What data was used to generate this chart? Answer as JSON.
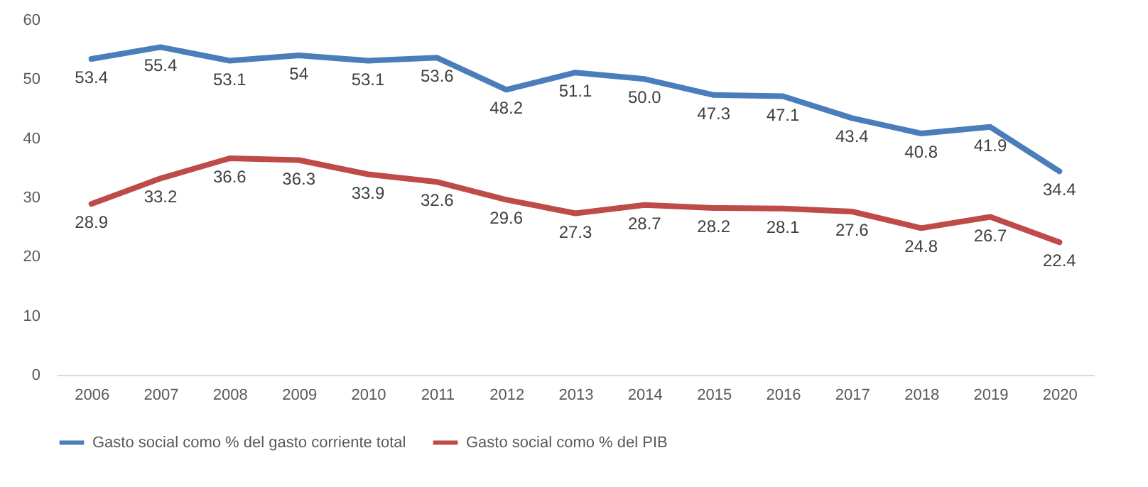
{
  "chart_data": {
    "type": "line",
    "categories": [
      "2006",
      "2007",
      "2008",
      "2009",
      "2010",
      "2011",
      "2012",
      "2013",
      "2014",
      "2015",
      "2016",
      "2017",
      "2018",
      "2019",
      "2020"
    ],
    "series": [
      {
        "name": "Gasto social como % del gasto corriente total",
        "color": "#4a7ebb",
        "values": [
          53.4,
          55.4,
          53.1,
          54,
          53.1,
          53.6,
          48.2,
          51.1,
          50.0,
          47.3,
          47.1,
          43.4,
          40.8,
          41.9,
          34.4
        ],
        "value_labels": [
          "53.4",
          "55.4",
          "53.1",
          "54",
          "53.1",
          "53.6",
          "48.2",
          "51.1",
          "50.0",
          "47.3",
          "47.1",
          "43.4",
          "40.8",
          "41.9",
          "34.4"
        ]
      },
      {
        "name": "Gasto social como % del PIB",
        "color": "#be4b48",
        "values": [
          28.9,
          33.2,
          36.6,
          36.3,
          33.9,
          32.6,
          29.6,
          27.3,
          28.7,
          28.2,
          28.1,
          27.6,
          24.8,
          26.7,
          22.4
        ],
        "value_labels": [
          "28.9",
          "33.2",
          "36.6",
          "36.3",
          "33.9",
          "32.6",
          "29.6",
          "27.3",
          "28.7",
          "28.2",
          "28.1",
          "27.6",
          "24.8",
          "26.7",
          "22.4"
        ]
      }
    ],
    "ylim": [
      0,
      60
    ],
    "yticks": [
      0,
      10,
      20,
      30,
      40,
      50,
      60
    ],
    "grid": false,
    "legend": "bottom",
    "marker": "none",
    "line_style": "solid"
  }
}
